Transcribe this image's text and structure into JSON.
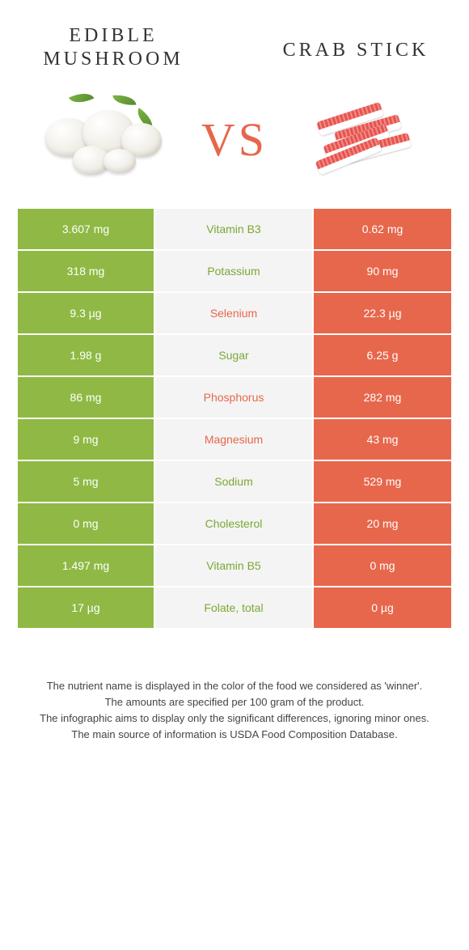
{
  "header": {
    "left_title": "Edible mushroom",
    "right_title": "Crab stick",
    "vs": "VS"
  },
  "colors": {
    "green": "#8fb944",
    "orange": "#e7674c",
    "mid_bg": "#f4f4f4",
    "label_green": "#7ca735",
    "label_orange": "#e7674c",
    "text": "#333333",
    "background": "#ffffff"
  },
  "table": {
    "rows": [
      {
        "left": "3.607 mg",
        "label": "Vitamin B3",
        "right": "0.62 mg",
        "winner": "green"
      },
      {
        "left": "318 mg",
        "label": "Potassium",
        "right": "90 mg",
        "winner": "green"
      },
      {
        "left": "9.3 µg",
        "label": "Selenium",
        "right": "22.3 µg",
        "winner": "orange"
      },
      {
        "left": "1.98 g",
        "label": "Sugar",
        "right": "6.25 g",
        "winner": "green"
      },
      {
        "left": "86 mg",
        "label": "Phosphorus",
        "right": "282 mg",
        "winner": "orange"
      },
      {
        "left": "9 mg",
        "label": "Magnesium",
        "right": "43 mg",
        "winner": "orange"
      },
      {
        "left": "5 mg",
        "label": "Sodium",
        "right": "529 mg",
        "winner": "green"
      },
      {
        "left": "0 mg",
        "label": "Cholesterol",
        "right": "20 mg",
        "winner": "green"
      },
      {
        "left": "1.497 mg",
        "label": "Vitamin B5",
        "right": "0 mg",
        "winner": "green"
      },
      {
        "left": "17 µg",
        "label": "Folate, total",
        "right": "0 µg",
        "winner": "green"
      }
    ]
  },
  "footer": {
    "line1": "The nutrient name is displayed in the color of the food we considered as 'winner'.",
    "line2": "The amounts are specified per 100 gram of the product.",
    "line3": "The infographic aims to display only the significant differences, ignoring minor ones.",
    "line4": "The main source of information is USDA Food Composition Database."
  }
}
